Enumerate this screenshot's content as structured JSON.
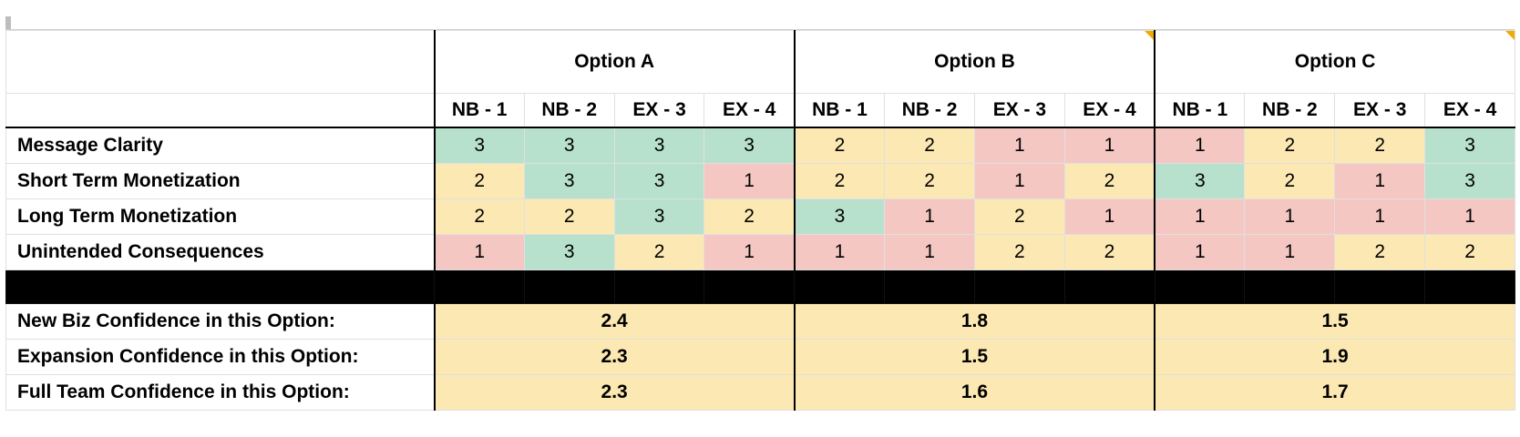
{
  "header": {
    "options": [
      {
        "name": "Option A",
        "raters": [
          "NB - 1",
          "NB - 2",
          "EX - 3",
          "EX - 4"
        ]
      },
      {
        "name": "Option B",
        "raters": [
          "NB - 1",
          "NB - 2",
          "EX - 3",
          "EX - 4"
        ]
      },
      {
        "name": "Option C",
        "raters": [
          "NB - 1",
          "NB - 2",
          "EX - 3",
          "EX - 4"
        ]
      }
    ]
  },
  "score_colors": {
    "1": "#f4c7c3",
    "2": "#fce8b2",
    "3": "#b7e1cd"
  },
  "summary_color": "#fce8b2",
  "rows": [
    {
      "label": "Message Clarity",
      "scores": [
        3,
        3,
        3,
        3,
        2,
        2,
        1,
        1,
        1,
        2,
        2,
        3
      ]
    },
    {
      "label": "Short Term Monetization",
      "scores": [
        2,
        3,
        3,
        1,
        2,
        2,
        1,
        2,
        3,
        2,
        1,
        3
      ]
    },
    {
      "label": "Long Term Monetization",
      "scores": [
        2,
        2,
        3,
        2,
        3,
        1,
        2,
        1,
        1,
        1,
        1,
        1
      ]
    },
    {
      "label": "Unintended Consequences",
      "scores": [
        1,
        3,
        2,
        1,
        1,
        1,
        2,
        2,
        1,
        1,
        2,
        2
      ]
    }
  ],
  "summary": [
    {
      "label": "New Biz Confidence in this Option:",
      "values": [
        2.4,
        1.8,
        1.5
      ]
    },
    {
      "label": "Expansion Confidence in this Option:",
      "values": [
        2.3,
        1.5,
        1.9
      ]
    },
    {
      "label": "Full Team Confidence in this Option:",
      "values": [
        2.3,
        1.6,
        1.7
      ]
    }
  ]
}
